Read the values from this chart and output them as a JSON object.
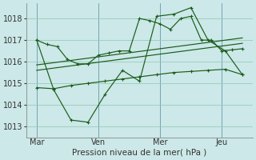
{
  "xlabel": "Pression niveau de la mer( hPa )",
  "bg_color": "#cce8e8",
  "grid_color": "#99ccbb",
  "line_color": "#1a5c1a",
  "ylim": [
    1012.5,
    1018.7
  ],
  "yticks": [
    1013,
    1014,
    1015,
    1016,
    1017,
    1018
  ],
  "xtick_labels": [
    "Mar",
    "Ven",
    "Mer",
    "Jeu"
  ],
  "xtick_positions": [
    0,
    3,
    6,
    9
  ],
  "xlim": [
    -0.5,
    10.5
  ],
  "n_points": 13,
  "line1_x": [
    0,
    0.5,
    1,
    1.5,
    2,
    2.5,
    3,
    3.5,
    4,
    4.5,
    5,
    5.5,
    6,
    6.5,
    7,
    7.5,
    8,
    8.5,
    9,
    9.5,
    10
  ],
  "line1": [
    1017.0,
    1016.8,
    1016.7,
    1016.1,
    1015.9,
    1015.9,
    1016.3,
    1016.4,
    1016.5,
    1016.5,
    1018.0,
    1017.9,
    1017.75,
    1017.5,
    1018.0,
    1018.1,
    1017.0,
    1017.0,
    1016.5,
    1016.55,
    1016.6
  ],
  "line2_x": [
    0,
    0.83,
    1.67,
    2.5,
    3.33,
    4.17,
    5,
    5.83,
    6.67,
    7.5,
    8.33,
    9.17,
    10
  ],
  "line2": [
    1017.0,
    1014.7,
    1013.3,
    1013.2,
    1014.5,
    1015.6,
    1015.1,
    1018.1,
    1018.2,
    1018.5,
    1017.0,
    1016.5,
    1015.4
  ],
  "line3_x": [
    0,
    0.83,
    1.67,
    2.5,
    3.33,
    4.17,
    5,
    5.83,
    6.67,
    7.5,
    8.33,
    9.17,
    10
  ],
  "line3": [
    1014.8,
    1014.75,
    1014.9,
    1015.0,
    1015.1,
    1015.2,
    1015.3,
    1015.4,
    1015.5,
    1015.55,
    1015.6,
    1015.65,
    1015.4
  ],
  "trend1_x": [
    0,
    10
  ],
  "trend1": [
    1015.85,
    1017.1
  ],
  "trend2_x": [
    0,
    10
  ],
  "trend2": [
    1015.6,
    1016.85
  ],
  "vline_positions": [
    0,
    3,
    6,
    9
  ],
  "xlabel_fontsize": 7.5,
  "tick_fontsize": 7
}
